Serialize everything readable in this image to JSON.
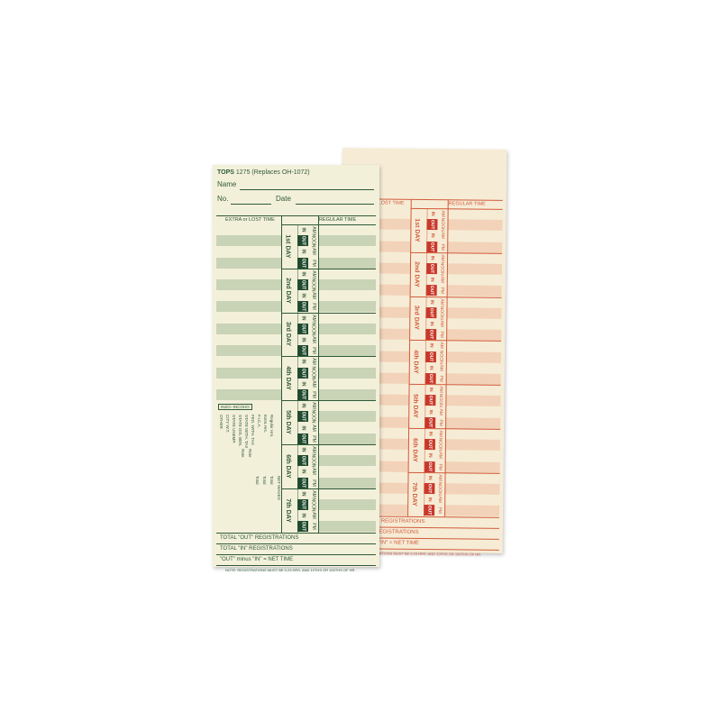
{
  "card": {
    "brand": "TOPS",
    "model": "1275 (Replaces OH-1072)",
    "name_label": "Name",
    "no_label": "No.",
    "date_label": "Date",
    "col_extra": "EXTRA or LOST TIME",
    "col_regular": "REGULAR TIME",
    "days": [
      "1st DAY",
      "2nd DAY",
      "3rd DAY",
      "4th DAY",
      "5th DAY",
      "6th DAY",
      "7th DAY"
    ],
    "io": [
      "IN",
      "OUT",
      "IN",
      "OUT"
    ],
    "periods": [
      "AM",
      "NOON",
      "PM"
    ],
    "box_label": "INZO--INCOHO",
    "side_labels": [
      "OTHER",
      "CITY W.T.",
      "STATE UNEMP.",
      "STATE DIS. BEN.",
      "STATE WITH. TAX",
      "FED. WITH. TAX",
      "F.I.C.A.",
      "Extra Hrs.",
      "Regular Hrs."
    ],
    "side_right": [
      "NET WAGES",
      "Total",
      "Total",
      "Total",
      "Rate",
      "Rate"
    ],
    "total_out": "TOTAL \"OUT\" REGISTRATIONS",
    "total_in": "TOTAL \"IN\" REGISTRATIONS",
    "net": "\"OUT\" minus \"IN\" = NET TIME",
    "note": "NOTE: REGISTRATIONS MUST BE 0.23 HRS. AND 10THS OR 100THS OF HR."
  },
  "colors": {
    "front_ink": "#2f5a3a",
    "front_stripe": "#c9d3b6",
    "front_dark": "#1f4a2e",
    "back_ink": "#d25a3a",
    "back_stripe": "#f2d2b8",
    "back_dark": "#c8382a"
  }
}
